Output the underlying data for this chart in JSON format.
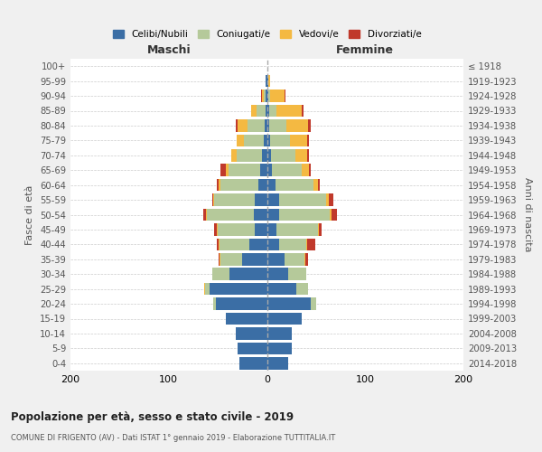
{
  "age_groups_bottom_to_top": [
    "0-4",
    "5-9",
    "10-14",
    "15-19",
    "20-24",
    "25-29",
    "30-34",
    "35-39",
    "40-44",
    "45-49",
    "50-54",
    "55-59",
    "60-64",
    "65-69",
    "70-74",
    "75-79",
    "80-84",
    "85-89",
    "90-94",
    "95-99",
    "100+"
  ],
  "birth_years_bottom_to_top": [
    "2014-2018",
    "2009-2013",
    "2004-2008",
    "1999-2003",
    "1994-1998",
    "1989-1993",
    "1984-1988",
    "1979-1983",
    "1974-1978",
    "1969-1973",
    "1964-1968",
    "1959-1963",
    "1954-1958",
    "1949-1953",
    "1944-1948",
    "1939-1943",
    "1934-1938",
    "1929-1933",
    "1924-1928",
    "1919-1923",
    "≤ 1918"
  ],
  "colors": {
    "celibi": "#3b6ea5",
    "coniugati": "#b5c99a",
    "vedovi": "#f4b942",
    "divorziati": "#c0392b"
  },
  "maschi_bottom_to_top": {
    "celibi": [
      28,
      30,
      32,
      42,
      52,
      58,
      38,
      25,
      18,
      12,
      13,
      12,
      9,
      7,
      5,
      3,
      2,
      1,
      1,
      1,
      0
    ],
    "coniugati": [
      0,
      0,
      0,
      0,
      3,
      5,
      18,
      22,
      30,
      38,
      48,
      42,
      38,
      32,
      26,
      20,
      18,
      10,
      2,
      0,
      0
    ],
    "vedovi": [
      0,
      0,
      0,
      0,
      0,
      1,
      0,
      1,
      1,
      1,
      1,
      1,
      2,
      3,
      5,
      8,
      10,
      5,
      2,
      0,
      0
    ],
    "divorziati": [
      0,
      0,
      0,
      0,
      0,
      0,
      0,
      1,
      2,
      3,
      3,
      1,
      2,
      5,
      0,
      0,
      2,
      0,
      1,
      0,
      0
    ]
  },
  "femmine_bottom_to_top": {
    "nubili": [
      22,
      25,
      25,
      35,
      45,
      30,
      22,
      18,
      12,
      10,
      12,
      12,
      9,
      5,
      4,
      3,
      2,
      2,
      1,
      1,
      0
    ],
    "coniugate": [
      0,
      0,
      0,
      0,
      5,
      12,
      18,
      20,
      28,
      42,
      52,
      48,
      38,
      30,
      25,
      20,
      18,
      8,
      2,
      0,
      0
    ],
    "vedove": [
      0,
      0,
      0,
      0,
      0,
      0,
      0,
      1,
      1,
      1,
      2,
      3,
      5,
      8,
      12,
      18,
      22,
      25,
      15,
      2,
      0
    ],
    "divorziate": [
      0,
      0,
      0,
      0,
      0,
      0,
      0,
      3,
      8,
      3,
      5,
      5,
      2,
      2,
      2,
      2,
      3,
      2,
      1,
      0,
      0
    ]
  },
  "title": "Popolazione per età, sesso e stato civile - 2019",
  "subtitle": "COMUNE DI FRIGENTO (AV) - Dati ISTAT 1° gennaio 2019 - Elaborazione TUTTITALIA.IT",
  "xlabel_left": "Maschi",
  "xlabel_right": "Femmine",
  "ylabel_left": "Fasce di età",
  "ylabel_right": "Anni di nascita",
  "xlim": 200,
  "bg_color": "#f0f0f0",
  "plot_bg_color": "#ffffff",
  "legend_labels": [
    "Celibi/Nubili",
    "Coniugati/e",
    "Vedovi/e",
    "Divorziati/e"
  ]
}
